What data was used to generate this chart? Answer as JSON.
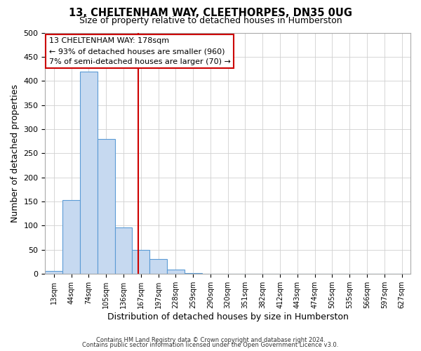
{
  "title": "13, CHELTENHAM WAY, CLEETHORPES, DN35 0UG",
  "subtitle": "Size of property relative to detached houses in Humberston",
  "xlabel": "Distribution of detached houses by size in Humberston",
  "ylabel": "Number of detached properties",
  "bin_labels": [
    "13sqm",
    "44sqm",
    "74sqm",
    "105sqm",
    "136sqm",
    "167sqm",
    "197sqm",
    "228sqm",
    "259sqm",
    "290sqm",
    "320sqm",
    "351sqm",
    "382sqm",
    "412sqm",
    "443sqm",
    "474sqm",
    "505sqm",
    "535sqm",
    "566sqm",
    "597sqm",
    "627sqm"
  ],
  "bar_heights": [
    5,
    152,
    419,
    279,
    96,
    50,
    30,
    9,
    1,
    0,
    0,
    0,
    0,
    0,
    0,
    0,
    0,
    0,
    0,
    0,
    0
  ],
  "bar_color": "#c6d9f0",
  "bar_edge_color": "#5b9bd5",
  "vline_color": "#cc0000",
  "vline_pos": 5.355,
  "annotation_title": "13 CHELTENHAM WAY: 178sqm",
  "annotation_line1": "← 93% of detached houses are smaller (960)",
  "annotation_line2": "7% of semi-detached houses are larger (70) →",
  "annotation_box_color": "#ffffff",
  "annotation_box_edge": "#cc0000",
  "ylim": [
    0,
    500
  ],
  "yticks": [
    0,
    50,
    100,
    150,
    200,
    250,
    300,
    350,
    400,
    450,
    500
  ],
  "footer_line1": "Contains HM Land Registry data © Crown copyright and database right 2024.",
  "footer_line2": "Contains public sector information licensed under the Open Government Licence v3.0."
}
